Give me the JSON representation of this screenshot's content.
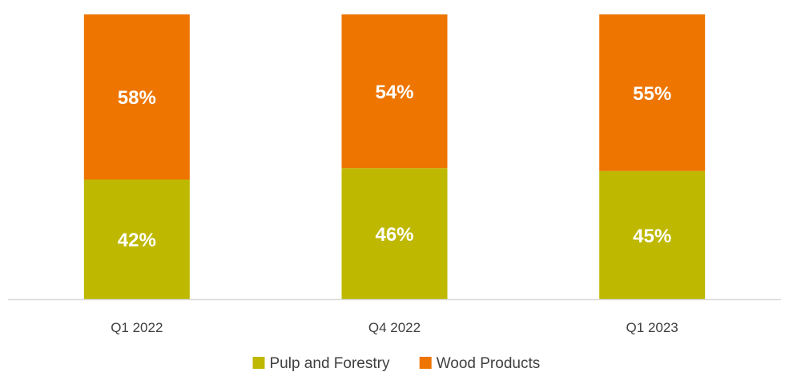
{
  "chart_data": {
    "type": "bar",
    "stacked": true,
    "categories": [
      "Q1 2022",
      "Q4 2022",
      "Q1 2023"
    ],
    "series": [
      {
        "name": "Pulp and Forestry",
        "values": [
          42,
          46,
          45
        ],
        "labels": [
          "42%",
          "46%",
          "45%"
        ],
        "color": "#BFB800"
      },
      {
        "name": "Wood Products",
        "values": [
          58,
          54,
          55
        ],
        "labels": [
          "58%",
          "54%",
          "55%"
        ],
        "color": "#ED7500"
      }
    ],
    "ylim": [
      0,
      100
    ],
    "grid": false,
    "legend_position": "bottom",
    "axis_color": "#D9D9D9"
  }
}
